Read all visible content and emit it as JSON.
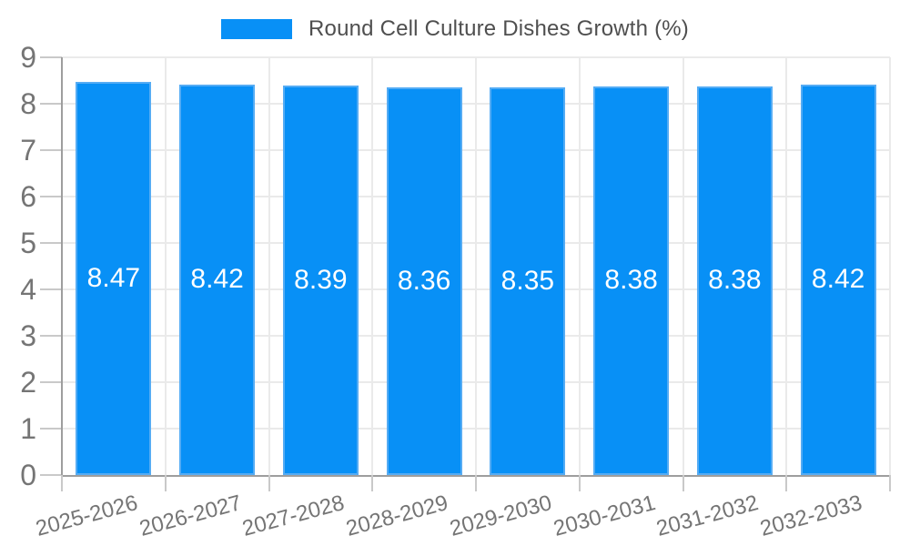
{
  "chart_data": {
    "type": "bar",
    "title": "Round Cell Culture Dishes Growth (%)",
    "categories": [
      "2025-2026",
      "2026-2027",
      "2027-2028",
      "2028-2029",
      "2029-2030",
      "2030-2031",
      "2031-2032",
      "2032-2033"
    ],
    "values": [
      8.47,
      8.42,
      8.39,
      8.36,
      8.35,
      8.38,
      8.38,
      8.42
    ],
    "value_labels": [
      "8.47",
      "8.42",
      "8.39",
      "8.36",
      "8.35",
      "8.38",
      "8.38",
      "8.42"
    ],
    "ylabel": "",
    "xlabel": "",
    "ylim": [
      0,
      9
    ],
    "yticks": [
      0,
      1,
      2,
      3,
      4,
      5,
      6,
      7,
      8,
      9
    ],
    "grid": true,
    "legend_position": "top",
    "colors": {
      "bar": "#0890F6",
      "bar_border": "#55ACF4",
      "grid": "#EAEAEA",
      "tick": "#C9C9C9",
      "axis": "#9E9E9E",
      "label": "#757575",
      "title": "#4F4F4F",
      "value_label": "#FFFFFF"
    }
  }
}
